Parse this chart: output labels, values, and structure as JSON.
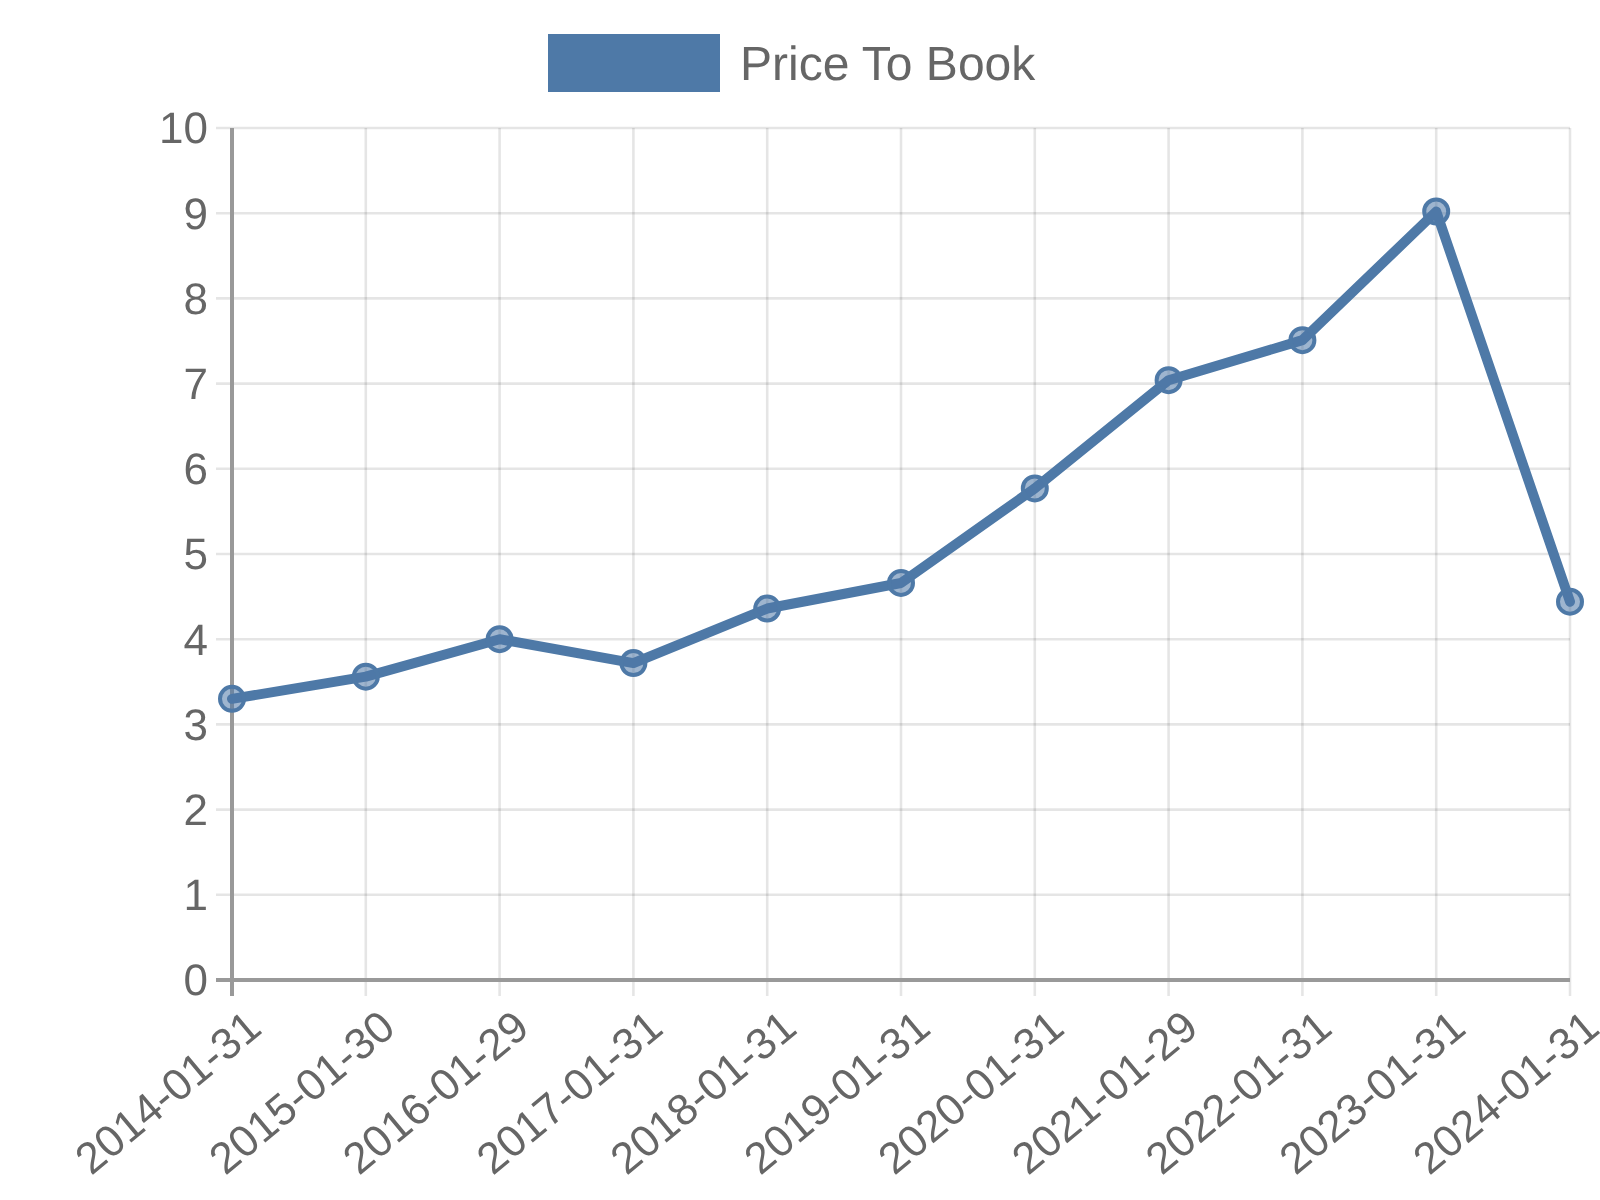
{
  "chart_data": {
    "type": "line",
    "categories": [
      "2014-01-31",
      "2015-01-30",
      "2016-01-29",
      "2017-01-31",
      "2018-01-31",
      "2019-01-31",
      "2020-01-31",
      "2021-01-29",
      "2022-01-31",
      "2023-01-31",
      "2024-01-31"
    ],
    "series": [
      {
        "name": "Price To Book",
        "color": "#4e79a7",
        "values": [
          3.3,
          3.56,
          4.0,
          3.72,
          4.36,
          4.66,
          5.77,
          7.04,
          7.51,
          9.02,
          4.44
        ]
      }
    ],
    "ylim": [
      0,
      10
    ],
    "yticks": [
      0,
      1,
      2,
      3,
      4,
      5,
      6,
      7,
      8,
      9,
      10
    ],
    "grid": true,
    "legend": "top",
    "marker": "circle",
    "line_style": "solid"
  }
}
